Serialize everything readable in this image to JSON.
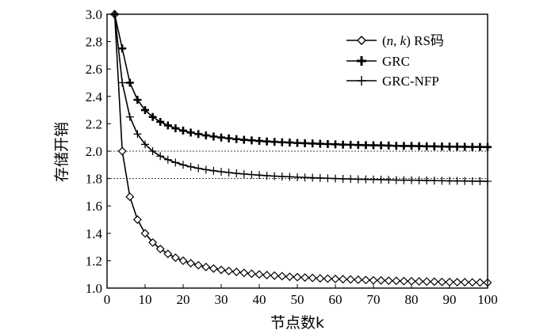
{
  "chart_data": {
    "type": "line",
    "xlabel": "节点数k",
    "ylabel": "存储开销",
    "xlim": [
      0,
      100
    ],
    "ylim": [
      1.0,
      3.0
    ],
    "x_ticks": [
      0,
      10,
      20,
      30,
      40,
      50,
      60,
      70,
      80,
      90,
      100
    ],
    "y_ticks": [
      1.0,
      1.2,
      1.4,
      1.6,
      1.8,
      2.0,
      2.2,
      2.4,
      2.6,
      2.8,
      3.0
    ],
    "grid": false,
    "reference_lines": [
      2.0,
      1.8
    ],
    "legend_position": "top-right",
    "legend": {
      "rs": {
        "prefix": "(",
        "n": "n",
        "sep": ", ",
        "k": "k",
        "suffix": ") RS码"
      },
      "grc": "GRC",
      "grcnfp": "GRC-NFP"
    },
    "series": [
      {
        "name": "(n, k) RS码",
        "marker": "diamond",
        "line": true,
        "x": [
          2,
          4,
          6,
          8,
          10,
          12,
          14,
          16,
          18,
          20,
          22,
          24,
          26,
          28,
          30,
          32,
          34,
          36,
          38,
          40,
          42,
          44,
          46,
          48,
          50,
          52,
          54,
          56,
          58,
          60,
          62,
          64,
          66,
          68,
          70,
          72,
          74,
          76,
          78,
          80,
          82,
          84,
          86,
          88,
          90,
          92,
          94,
          96,
          98,
          100
        ],
        "y": [
          3.0,
          2.0,
          1.667,
          1.5,
          1.4,
          1.333,
          1.286,
          1.25,
          1.222,
          1.2,
          1.182,
          1.167,
          1.154,
          1.143,
          1.133,
          1.125,
          1.118,
          1.111,
          1.105,
          1.1,
          1.095,
          1.091,
          1.087,
          1.083,
          1.08,
          1.077,
          1.074,
          1.071,
          1.069,
          1.067,
          1.065,
          1.063,
          1.061,
          1.059,
          1.057,
          1.056,
          1.054,
          1.053,
          1.051,
          1.05,
          1.049,
          1.048,
          1.047,
          1.045,
          1.044,
          1.043,
          1.043,
          1.042,
          1.041,
          1.04
        ]
      },
      {
        "name": "GRC",
        "marker": "plus-bold",
        "line": true,
        "x": [
          2,
          4,
          6,
          8,
          10,
          12,
          14,
          16,
          18,
          20,
          22,
          24,
          26,
          28,
          30,
          32,
          34,
          36,
          38,
          40,
          42,
          44,
          46,
          48,
          50,
          52,
          54,
          56,
          58,
          60,
          62,
          64,
          66,
          68,
          70,
          72,
          74,
          76,
          78,
          80,
          82,
          84,
          86,
          88,
          90,
          92,
          94,
          96,
          98,
          100
        ],
        "y": [
          3.0,
          2.75,
          2.5,
          2.375,
          2.3,
          2.25,
          2.214,
          2.188,
          2.167,
          2.15,
          2.136,
          2.125,
          2.115,
          2.107,
          2.1,
          2.094,
          2.088,
          2.083,
          2.079,
          2.075,
          2.071,
          2.068,
          2.065,
          2.063,
          2.06,
          2.058,
          2.056,
          2.054,
          2.052,
          2.05,
          2.048,
          2.047,
          2.045,
          2.044,
          2.043,
          2.042,
          2.041,
          2.039,
          2.038,
          2.038,
          2.037,
          2.036,
          2.035,
          2.034,
          2.033,
          2.033,
          2.032,
          2.031,
          2.031,
          2.03
        ]
      },
      {
        "name": "GRC-NFP",
        "marker": "plus-thin",
        "line": true,
        "x": [
          2,
          4,
          6,
          8,
          10,
          12,
          14,
          16,
          18,
          20,
          22,
          24,
          26,
          28,
          30,
          32,
          34,
          36,
          38,
          40,
          42,
          44,
          46,
          48,
          50,
          52,
          54,
          56,
          58,
          60,
          62,
          64,
          66,
          68,
          70,
          72,
          74,
          76,
          78,
          80,
          82,
          84,
          86,
          88,
          90,
          92,
          94,
          96,
          98,
          100
        ],
        "y": [
          3.0,
          2.5,
          2.25,
          2.125,
          2.05,
          2.0,
          1.964,
          1.938,
          1.917,
          1.9,
          1.886,
          1.875,
          1.865,
          1.857,
          1.85,
          1.844,
          1.838,
          1.833,
          1.829,
          1.825,
          1.821,
          1.818,
          1.815,
          1.813,
          1.81,
          1.808,
          1.806,
          1.804,
          1.802,
          1.8,
          1.798,
          1.797,
          1.795,
          1.794,
          1.793,
          1.792,
          1.791,
          1.789,
          1.788,
          1.788,
          1.787,
          1.786,
          1.785,
          1.784,
          1.783,
          1.783,
          1.782,
          1.781,
          1.781,
          1.78
        ]
      }
    ]
  }
}
